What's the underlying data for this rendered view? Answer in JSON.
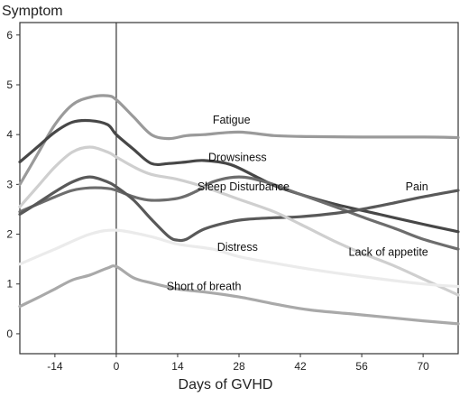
{
  "chart_data": {
    "type": "line",
    "title": "",
    "xlabel": "Days of GVHD",
    "ylabel": "Symptom",
    "xlim": [
      -22,
      78
    ],
    "ylim": [
      -0.4,
      6.25
    ],
    "xticks": [
      -14,
      0,
      14,
      28,
      42,
      56,
      70
    ],
    "yticks": [
      0,
      1,
      2,
      3,
      4,
      5,
      6
    ],
    "grid": false,
    "reference_line_x": 0,
    "series": [
      {
        "name": "Fatigue",
        "color": "#9a9a9a",
        "x": [
          -22,
          -18,
          -14,
          -10,
          -6,
          -2,
          0,
          4,
          8,
          12,
          16,
          20,
          28,
          36,
          44,
          56,
          70,
          78
        ],
        "y": [
          3.0,
          3.6,
          4.2,
          4.6,
          4.75,
          4.78,
          4.7,
          4.35,
          4.0,
          3.92,
          3.98,
          4.0,
          4.05,
          3.98,
          3.96,
          3.95,
          3.95,
          3.94
        ]
      },
      {
        "name": "Drowsiness",
        "color": "#474747",
        "x": [
          -22,
          -18,
          -14,
          -10,
          -6,
          -2,
          0,
          4,
          8,
          12,
          16,
          20,
          26,
          32,
          36,
          42,
          50,
          60,
          70,
          78
        ],
        "y": [
          3.45,
          3.75,
          4.05,
          4.25,
          4.28,
          4.2,
          4.0,
          3.7,
          3.42,
          3.42,
          3.45,
          3.48,
          3.4,
          3.15,
          2.98,
          2.8,
          2.6,
          2.4,
          2.2,
          2.05
        ]
      },
      {
        "name": "Sleep Disturbance",
        "color": "#6d6d6d",
        "x": [
          -22,
          -18,
          -14,
          -10,
          -6,
          -2,
          0,
          4,
          8,
          14,
          18,
          22,
          28,
          34,
          42,
          50,
          56,
          64,
          70,
          78
        ],
        "y": [
          2.45,
          2.6,
          2.75,
          2.88,
          2.93,
          2.92,
          2.88,
          2.75,
          2.68,
          2.72,
          2.85,
          3.05,
          3.15,
          3.05,
          2.8,
          2.55,
          2.35,
          2.1,
          1.9,
          1.7
        ]
      },
      {
        "name": "Pain",
        "color": "#595959",
        "x": [
          -22,
          -18,
          -14,
          -10,
          -6,
          -2,
          0,
          4,
          8,
          12,
          14,
          16,
          20,
          26,
          30,
          36,
          42,
          50,
          56,
          63,
          70,
          78
        ],
        "y": [
          2.4,
          2.62,
          2.85,
          3.05,
          3.15,
          3.05,
          2.95,
          2.68,
          2.3,
          1.95,
          1.88,
          1.9,
          2.1,
          2.25,
          2.3,
          2.33,
          2.35,
          2.42,
          2.5,
          2.62,
          2.75,
          2.88
        ]
      },
      {
        "name": "Lack of appetite",
        "color": "#cfcfcf",
        "x": [
          -22,
          -18,
          -14,
          -10,
          -6,
          -2,
          0,
          4,
          8,
          14,
          20,
          28,
          36,
          42,
          50,
          56,
          63,
          70,
          78
        ],
        "y": [
          2.55,
          2.95,
          3.35,
          3.65,
          3.75,
          3.65,
          3.55,
          3.35,
          3.2,
          3.1,
          2.95,
          2.7,
          2.45,
          2.2,
          1.85,
          1.62,
          1.38,
          1.1,
          0.78
        ]
      },
      {
        "name": "Distress",
        "color": "#ebebeb",
        "x": [
          -22,
          -14,
          -6,
          0,
          8,
          14,
          22,
          28,
          36,
          44,
          56,
          70,
          78
        ],
        "y": [
          1.4,
          1.7,
          2.0,
          2.08,
          1.95,
          1.8,
          1.7,
          1.55,
          1.42,
          1.3,
          1.15,
          1.0,
          0.95
        ]
      },
      {
        "name": "Short of breath",
        "color": "#a9a9a9",
        "x": [
          -22,
          -18,
          -14,
          -10,
          -6,
          -2,
          0,
          4,
          8,
          14,
          20,
          28,
          36,
          44,
          56,
          70,
          78
        ],
        "y": [
          0.55,
          0.72,
          0.9,
          1.08,
          1.18,
          1.32,
          1.35,
          1.12,
          1.02,
          0.9,
          0.84,
          0.74,
          0.6,
          0.48,
          0.38,
          0.26,
          0.2
        ]
      }
    ],
    "labels": [
      {
        "text": "Fatigue",
        "x": 22,
        "y": 4.22
      },
      {
        "text": "Drowsiness",
        "x": 21,
        "y": 3.47
      },
      {
        "text": "Sleep Disturbance",
        "x": 18.5,
        "y": 2.88
      },
      {
        "text": "Pain",
        "x": 66,
        "y": 2.88
      },
      {
        "text": "Lack of appetite",
        "x": 53,
        "y": 1.57
      },
      {
        "text": "Distress",
        "x": 23,
        "y": 1.67
      },
      {
        "text": "Short of breath",
        "x": 11.5,
        "y": 0.88
      }
    ]
  }
}
